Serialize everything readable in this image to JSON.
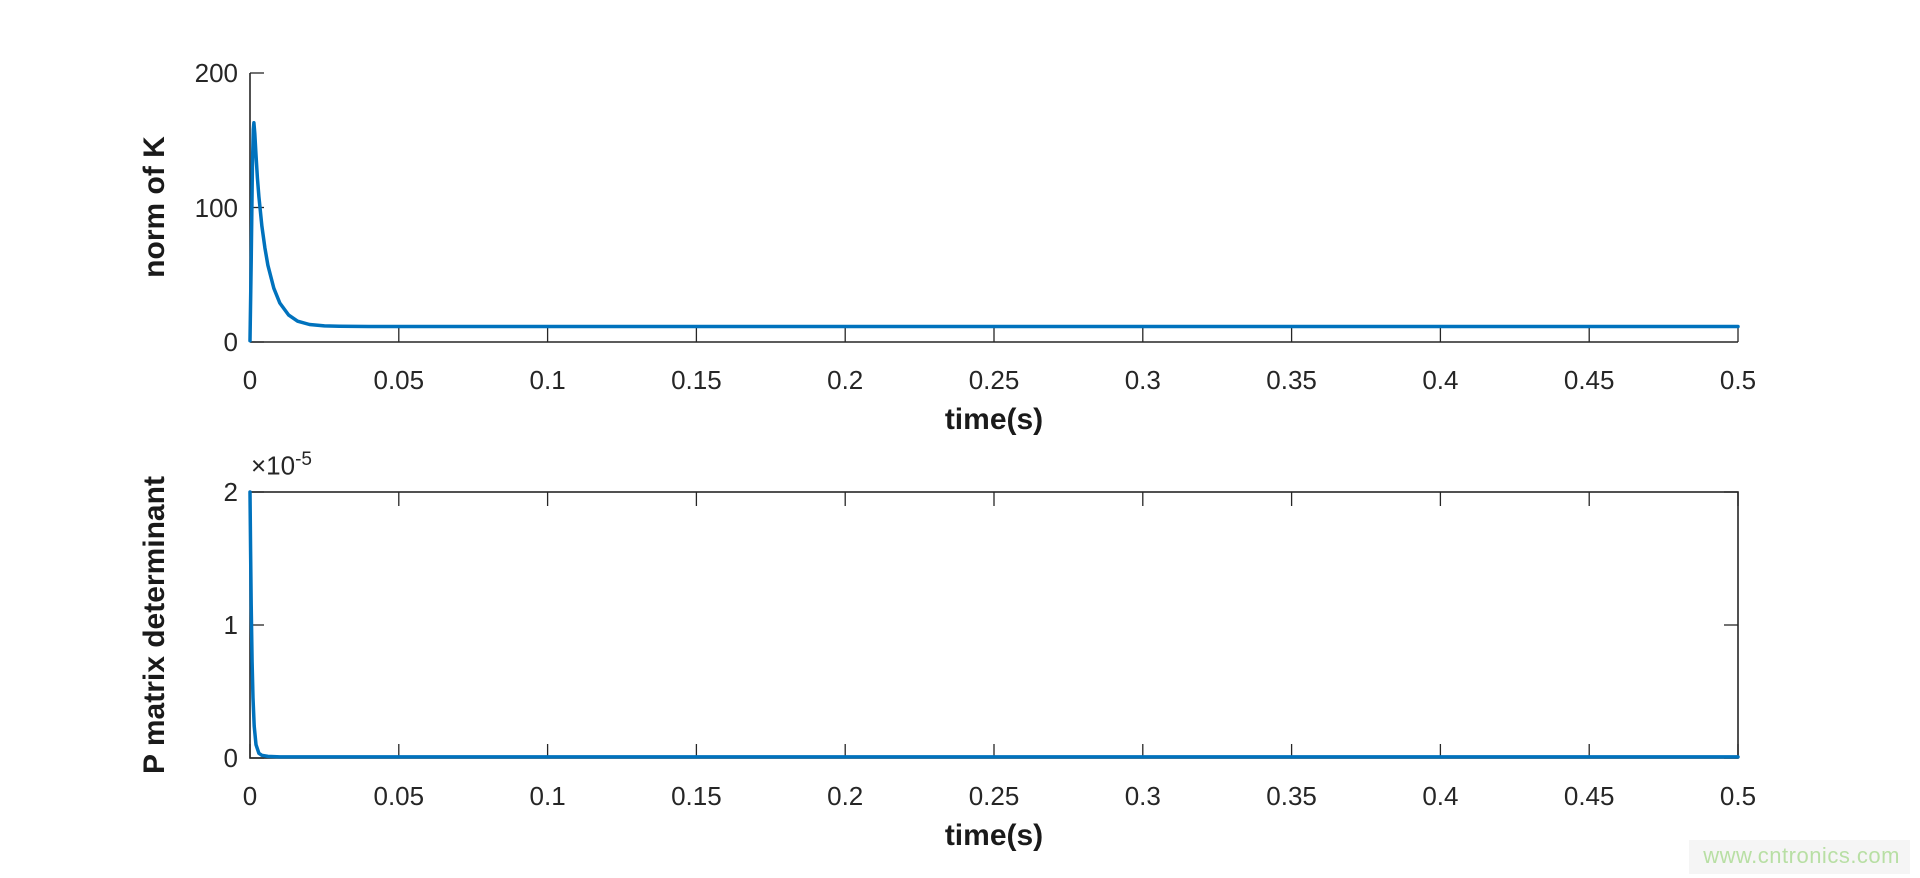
{
  "watermark": {
    "text": "www.cntronics.com",
    "color": "#b8dfa4",
    "background": "#f5f5f5"
  },
  "colors": {
    "line": "#0072BD",
    "axis": "#262626",
    "text": "#262626"
  },
  "chart_data": [
    {
      "type": "line",
      "title": "",
      "xlabel": "time(s)",
      "ylabel": "norm of K",
      "xlim": [
        0,
        0.5
      ],
      "ylim": [
        0,
        200
      ],
      "xticks": [
        0,
        0.05,
        0.1,
        0.15,
        0.2,
        0.25,
        0.3,
        0.35,
        0.4,
        0.45,
        0.5
      ],
      "xtick_labels": [
        "0",
        "0.05",
        "0.1",
        "0.15",
        "0.2",
        "0.25",
        "0.3",
        "0.35",
        "0.4",
        "0.45",
        "0.5"
      ],
      "yticks": [
        0,
        100,
        200
      ],
      "ytick_labels": [
        "0",
        "100",
        "200"
      ],
      "grid": false,
      "box": false,
      "legend": "none",
      "annotation": "spikes to ~163 at t≈0.001s then decays to steady value ~11.5",
      "series": [
        {
          "name": "norm of K",
          "x": [
            0,
            0.0004,
            0.0008,
            0.0011,
            0.0013,
            0.0016,
            0.002,
            0.0025,
            0.003,
            0.004,
            0.005,
            0.006,
            0.008,
            0.01,
            0.013,
            0.016,
            0.02,
            0.025,
            0.03,
            0.04,
            0.06,
            0.1,
            0.15,
            0.2,
            0.25,
            0.3,
            0.35,
            0.4,
            0.45,
            0.5
          ],
          "y": [
            1,
            60,
            130,
            158,
            163,
            155,
            139,
            122,
            108,
            86,
            70,
            57,
            40,
            29,
            20,
            15.5,
            13,
            12,
            11.7,
            11.5,
            11.5,
            11.5,
            11.5,
            11.5,
            11.5,
            11.5,
            11.5,
            11.5,
            11.5,
            11.5
          ]
        }
      ]
    },
    {
      "type": "line",
      "title": "",
      "xlabel": "time(s)",
      "ylabel": "P matrix determinant",
      "exponent": {
        "base": "×10",
        "power": "-5"
      },
      "xlim": [
        0,
        0.5
      ],
      "ylim": [
        0,
        2e-05
      ],
      "xticks": [
        0,
        0.05,
        0.1,
        0.15,
        0.2,
        0.25,
        0.3,
        0.35,
        0.4,
        0.45,
        0.5
      ],
      "xtick_labels": [
        "0",
        "0.05",
        "0.1",
        "0.15",
        "0.2",
        "0.25",
        "0.3",
        "0.35",
        "0.4",
        "0.45",
        "0.5"
      ],
      "yticks": [
        0,
        1e-05,
        2e-05
      ],
      "ytick_labels": [
        "0",
        "1",
        "2"
      ],
      "grid": false,
      "box": true,
      "legend": "none",
      "annotation": "starts at 2×10⁻⁵ at t=0 and decays to ~0 within ~0.004s",
      "series": [
        {
          "name": "P matrix determinant",
          "x": [
            0,
            0.0002,
            0.0004,
            0.0007,
            0.001,
            0.0014,
            0.002,
            0.003,
            0.004,
            0.006,
            0.01,
            0.05,
            0.1,
            0.2,
            0.3,
            0.4,
            0.5
          ],
          "y": [
            2e-05,
            1.55e-05,
            1.15e-05,
            7.2e-06,
            4.5e-06,
            2.4e-06,
            1e-06,
            3.5e-07,
            2e-07,
            1.2e-07,
            8e-08,
            8e-08,
            8e-08,
            8e-08,
            8e-08,
            8e-08,
            8e-08
          ]
        }
      ]
    }
  ]
}
